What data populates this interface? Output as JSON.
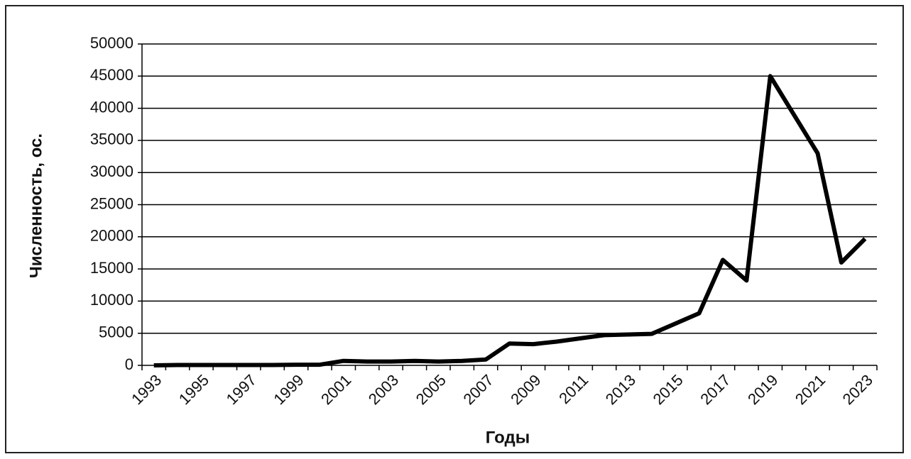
{
  "chart_data": {
    "type": "line",
    "y_label": "Численность, ос.",
    "x_label": "Годы",
    "categories": [
      "1993",
      null,
      "1995",
      null,
      "1997",
      null,
      "1999",
      null,
      "2001",
      null,
      "2003",
      null,
      "2005",
      null,
      "2007",
      null,
      "2009",
      null,
      "2011",
      null,
      "2013",
      null,
      "2015",
      null,
      "2017",
      null,
      "2019",
      null,
      "2021",
      null,
      "2023"
    ],
    "values": [
      0,
      50,
      50,
      50,
      50,
      50,
      100,
      100,
      700,
      600,
      600,
      700,
      600,
      700,
      900,
      3400,
      3300,
      3700,
      4200,
      4700,
      4800,
      4900,
      6500,
      8100,
      16400,
      13200,
      45000,
      39000,
      33000,
      16000,
      19700
    ],
    "color": "#000000",
    "ylim": [
      0,
      50000
    ],
    "yticks": [
      0,
      5000,
      10000,
      15000,
      20000,
      25000,
      30000,
      35000,
      40000,
      45000,
      50000
    ],
    "grid": true
  }
}
